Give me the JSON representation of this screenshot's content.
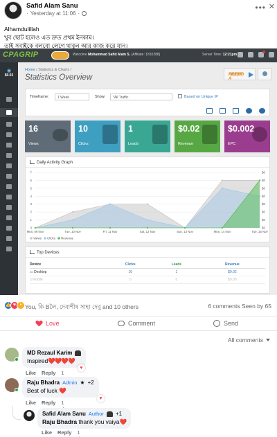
{
  "post": {
    "author": "Safid Alam Sanu",
    "time": "Yesterday at 11:06",
    "text_line1": "Alhamdulillah",
    "text_line2": "খুব ছোট হলেও এত দ্রুত প্রথম ইনকাম।",
    "text_line3": "তাই সবাইকে বলবো লেগে থাকুন আর কাজ করে যান।"
  },
  "screenshot": {
    "logo": "CPAGRIP",
    "welcome_prefix": "Welcome",
    "welcome_name": "Mohammad Safid Alam S.",
    "welcome_affiliate": "(Affiliate: 1810288)",
    "server_time_label": "Server Time:",
    "server_time": "12:21pm",
    "sidebar_balance": "$0.02",
    "breadcrumb_home": "Home",
    "breadcrumb_current": "/ Statistics & Charts /",
    "page_title": "Statistics Overview",
    "refer_text_1": "REFER A",
    "refer_text_2": "FRIEND",
    "filters": {
      "timeframe_label": "Timeframe:",
      "timeframe_value": "1 Week",
      "show_label": "Show:",
      "show_value": "*All Traffic",
      "unique_label": "Based on Unique IP"
    },
    "stats": [
      {
        "value": "16",
        "label": "Views",
        "color": "#5f6c77"
      },
      {
        "value": "10",
        "label": "Clicks",
        "color": "#3f9fc0"
      },
      {
        "value": "1",
        "label": "Leads",
        "color": "#3aa795"
      },
      {
        "value": "$0.02",
        "label": "Revenue",
        "color": "#57a844"
      },
      {
        "value": "$0.002",
        "label": "EPC",
        "color": "#9b3d8f"
      }
    ],
    "graph_title": "Daily Activity Graph",
    "devices_title": "Top Devices",
    "devices_table": {
      "headers": [
        "Device",
        "Clicks",
        "Leads",
        "Revenue"
      ],
      "rows": [
        {
          "device": "Desktop",
          "clicks": "10",
          "leads": "1",
          "revenue": "$0.02"
        },
        {
          "device": "Mobile",
          "clicks": "0",
          "leads": "0",
          "revenue": "$0.00"
        }
      ]
    }
  },
  "chart_data": {
    "type": "area",
    "categories": [
      "Mon, 09 Nov",
      "Tue, 10 Nov",
      "Fri, 11 Nov",
      "Sat, 12 Nov",
      "Sun, 13 Nov",
      "Mon, 14 Nov",
      "Tue, 15 Nov"
    ],
    "y_left_ticks": [
      "0",
      "1",
      "2",
      "3",
      "4",
      "5",
      "6",
      "7"
    ],
    "y_right_ticks": [
      "$0",
      "$0",
      "$0",
      "$0",
      "$0",
      "$0",
      "$0",
      "$0"
    ],
    "ylim": [
      0,
      7
    ],
    "series": [
      {
        "name": "Views",
        "color": "#c8c8c8",
        "values": [
          0,
          2,
          3,
          3,
          0,
          6,
          6
        ]
      },
      {
        "name": "Clicks",
        "color": "#a9cbe8",
        "values": [
          0,
          1,
          3,
          1,
          0,
          5,
          4
        ]
      },
      {
        "name": "Revenue",
        "color": "#5cbf5c",
        "values": [
          0,
          0,
          0,
          0,
          0,
          0,
          6
        ]
      }
    ],
    "legend_position": "bottom-left"
  },
  "reactions": {
    "names": "You, কি Bলৈ, দেবাশীষ সাহা দেবু and 10 others",
    "counts": "6 comments  Seen by 65"
  },
  "actions": {
    "love": "Love",
    "comment": "Comment",
    "send": "Send"
  },
  "all_comments": "All comments",
  "comments": [
    {
      "name": "MD Rezaul Karim",
      "text": "Inspired",
      "hearts": "❤️❤️❤️❤️",
      "like": "Like",
      "reply": "Reply",
      "time": "1 d"
    },
    {
      "name": "Raju Bhadra",
      "badge": "Admin",
      "badge_extra": "+2",
      "text": "Best of luck",
      "hearts": "❤️",
      "like": "Like",
      "reply": "Reply",
      "time": "1 d"
    },
    {
      "name": "Safid Alam Sanu",
      "badge": "Author",
      "badge_extra": "+1",
      "mention": "Raju Bhadra",
      "text": "thank you vaiya",
      "hearts": "❤️",
      "like": "Like",
      "reply": "Reply",
      "time": "1 d"
    }
  ]
}
